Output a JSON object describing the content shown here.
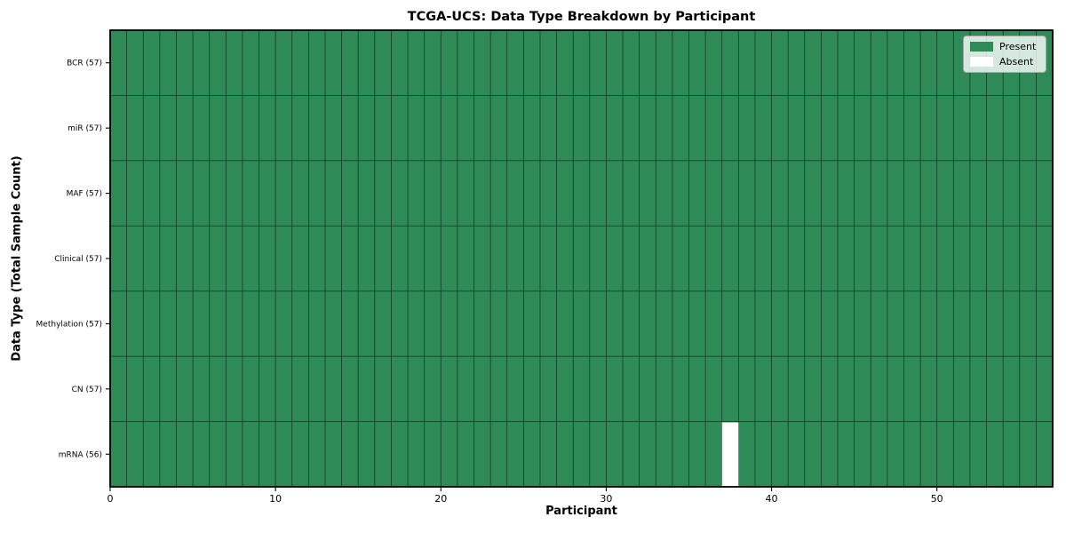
{
  "chart_data": {
    "type": "heatmap",
    "title": "TCGA-UCS: Data Type Breakdown by Participant",
    "xlabel": "Participant",
    "ylabel": "Data Type (Total Sample Count)",
    "n_participants": 57,
    "x_range": [
      0,
      57
    ],
    "x_ticks": [
      0,
      10,
      20,
      30,
      40,
      50
    ],
    "rows": [
      {
        "label": "BCR (57)",
        "data_type": "BCR",
        "total": 57,
        "absent_participants": []
      },
      {
        "label": "miR (57)",
        "data_type": "miR",
        "total": 57,
        "absent_participants": []
      },
      {
        "label": "MAF (57)",
        "data_type": "MAF",
        "total": 57,
        "absent_participants": []
      },
      {
        "label": "Clinical (57)",
        "data_type": "Clinical",
        "total": 57,
        "absent_participants": []
      },
      {
        "label": "Methylation (57)",
        "data_type": "Methylation",
        "total": 57,
        "absent_participants": []
      },
      {
        "label": "CN (57)",
        "data_type": "CN",
        "total": 57,
        "absent_participants": []
      },
      {
        "label": "mRNA (56)",
        "data_type": "mRNA",
        "total": 56,
        "absent_participants": [
          37
        ]
      }
    ],
    "legend": [
      {
        "label": "Present",
        "color": "#2e8b57"
      },
      {
        "label": "Absent",
        "color": "#ffffff"
      }
    ],
    "colors": {
      "present": "#2e8b57",
      "absent": "#ffffff",
      "grid": "#000000",
      "spine": "#000000",
      "text": "#000000"
    },
    "grid": true,
    "legend_position": "upper-right"
  }
}
